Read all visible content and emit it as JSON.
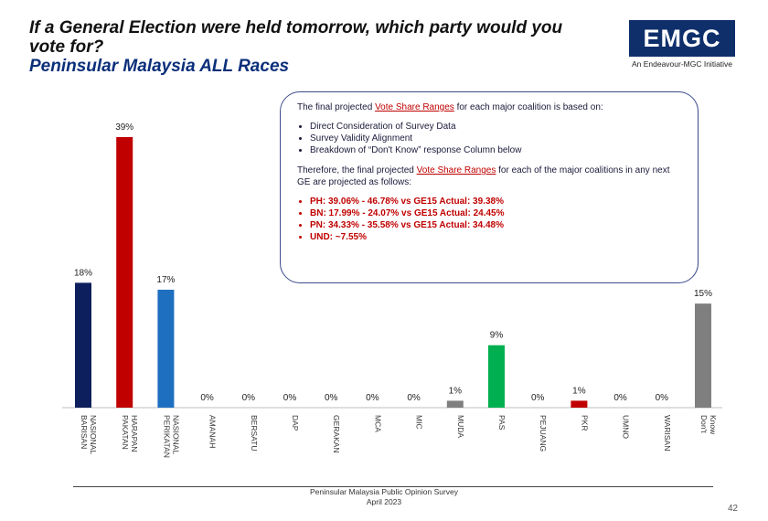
{
  "title": {
    "line1": "If a General Election were held tomorrow, which party would you vote for?",
    "line2": "Peninsular Malaysia ALL Races"
  },
  "logo": {
    "text": "EMGC",
    "sub": "An Endeavour-MGC Initiative",
    "color": "#0f2f6b"
  },
  "note": {
    "intro_pre": "The final projected ",
    "intro_link": "Vote Share Ranges",
    "intro_post": " for each major coalition is based on:",
    "bases": [
      "Direct Consideration of Survey Data",
      "Survey Validity Alignment",
      "Breakdown of “Don't Know” response Column below"
    ],
    "therefore_pre": "Therefore, the final projected ",
    "therefore_link": "Vote Share Ranges",
    "therefore_post": " for each of the major coalitions in any next GE are projected as follows:",
    "projections": [
      "PH: 39.06% - 46.78% vs GE15 Actual: 39.38%",
      "BN: 17.99% - 24.07% vs GE15 Actual: 24.45%",
      "PN: 34.33% - 35.58% vs GE15 Actual: 34.48%",
      "UND: ~7.55%"
    ]
  },
  "chart_data": {
    "type": "bar",
    "categories": [
      "BARISAN NASIONAL",
      "PAKATAN HARAPAN",
      "PERIKATAN NASIONAL",
      "AMANAH",
      "BERSATU",
      "DAP",
      "GERAKAN",
      "MCA",
      "MIC",
      "MUDA",
      "PAS",
      "PEJUANG",
      "PKR",
      "UMNO",
      "WARISAN",
      "Don't Know"
    ],
    "values": [
      18,
      39,
      17,
      0,
      0,
      0,
      0,
      0,
      0,
      1,
      9,
      0,
      1,
      0,
      0,
      15
    ],
    "labels": [
      "18%",
      "39%",
      "17%",
      "0%",
      "0%",
      "0%",
      "0%",
      "0%",
      "0%",
      "1%",
      "9%",
      "0%",
      "1%",
      "0%",
      "0%",
      "15%"
    ],
    "colors": [
      "#0d1f5c",
      "#c00000",
      "#1f6fc0",
      "#7f7f7f",
      "#7f7f7f",
      "#7f7f7f",
      "#7f7f7f",
      "#7f7f7f",
      "#7f7f7f",
      "#7f7f7f",
      "#00b050",
      "#7f7f7f",
      "#c00000",
      "#7f7f7f",
      "#7f7f7f",
      "#7f7f7f"
    ],
    "ylim": [
      0,
      40
    ],
    "grid": false
  },
  "footer": {
    "line1": "Peninsular Malaysia Public Opinion Survey",
    "line2": "April 2023",
    "page": "42"
  }
}
